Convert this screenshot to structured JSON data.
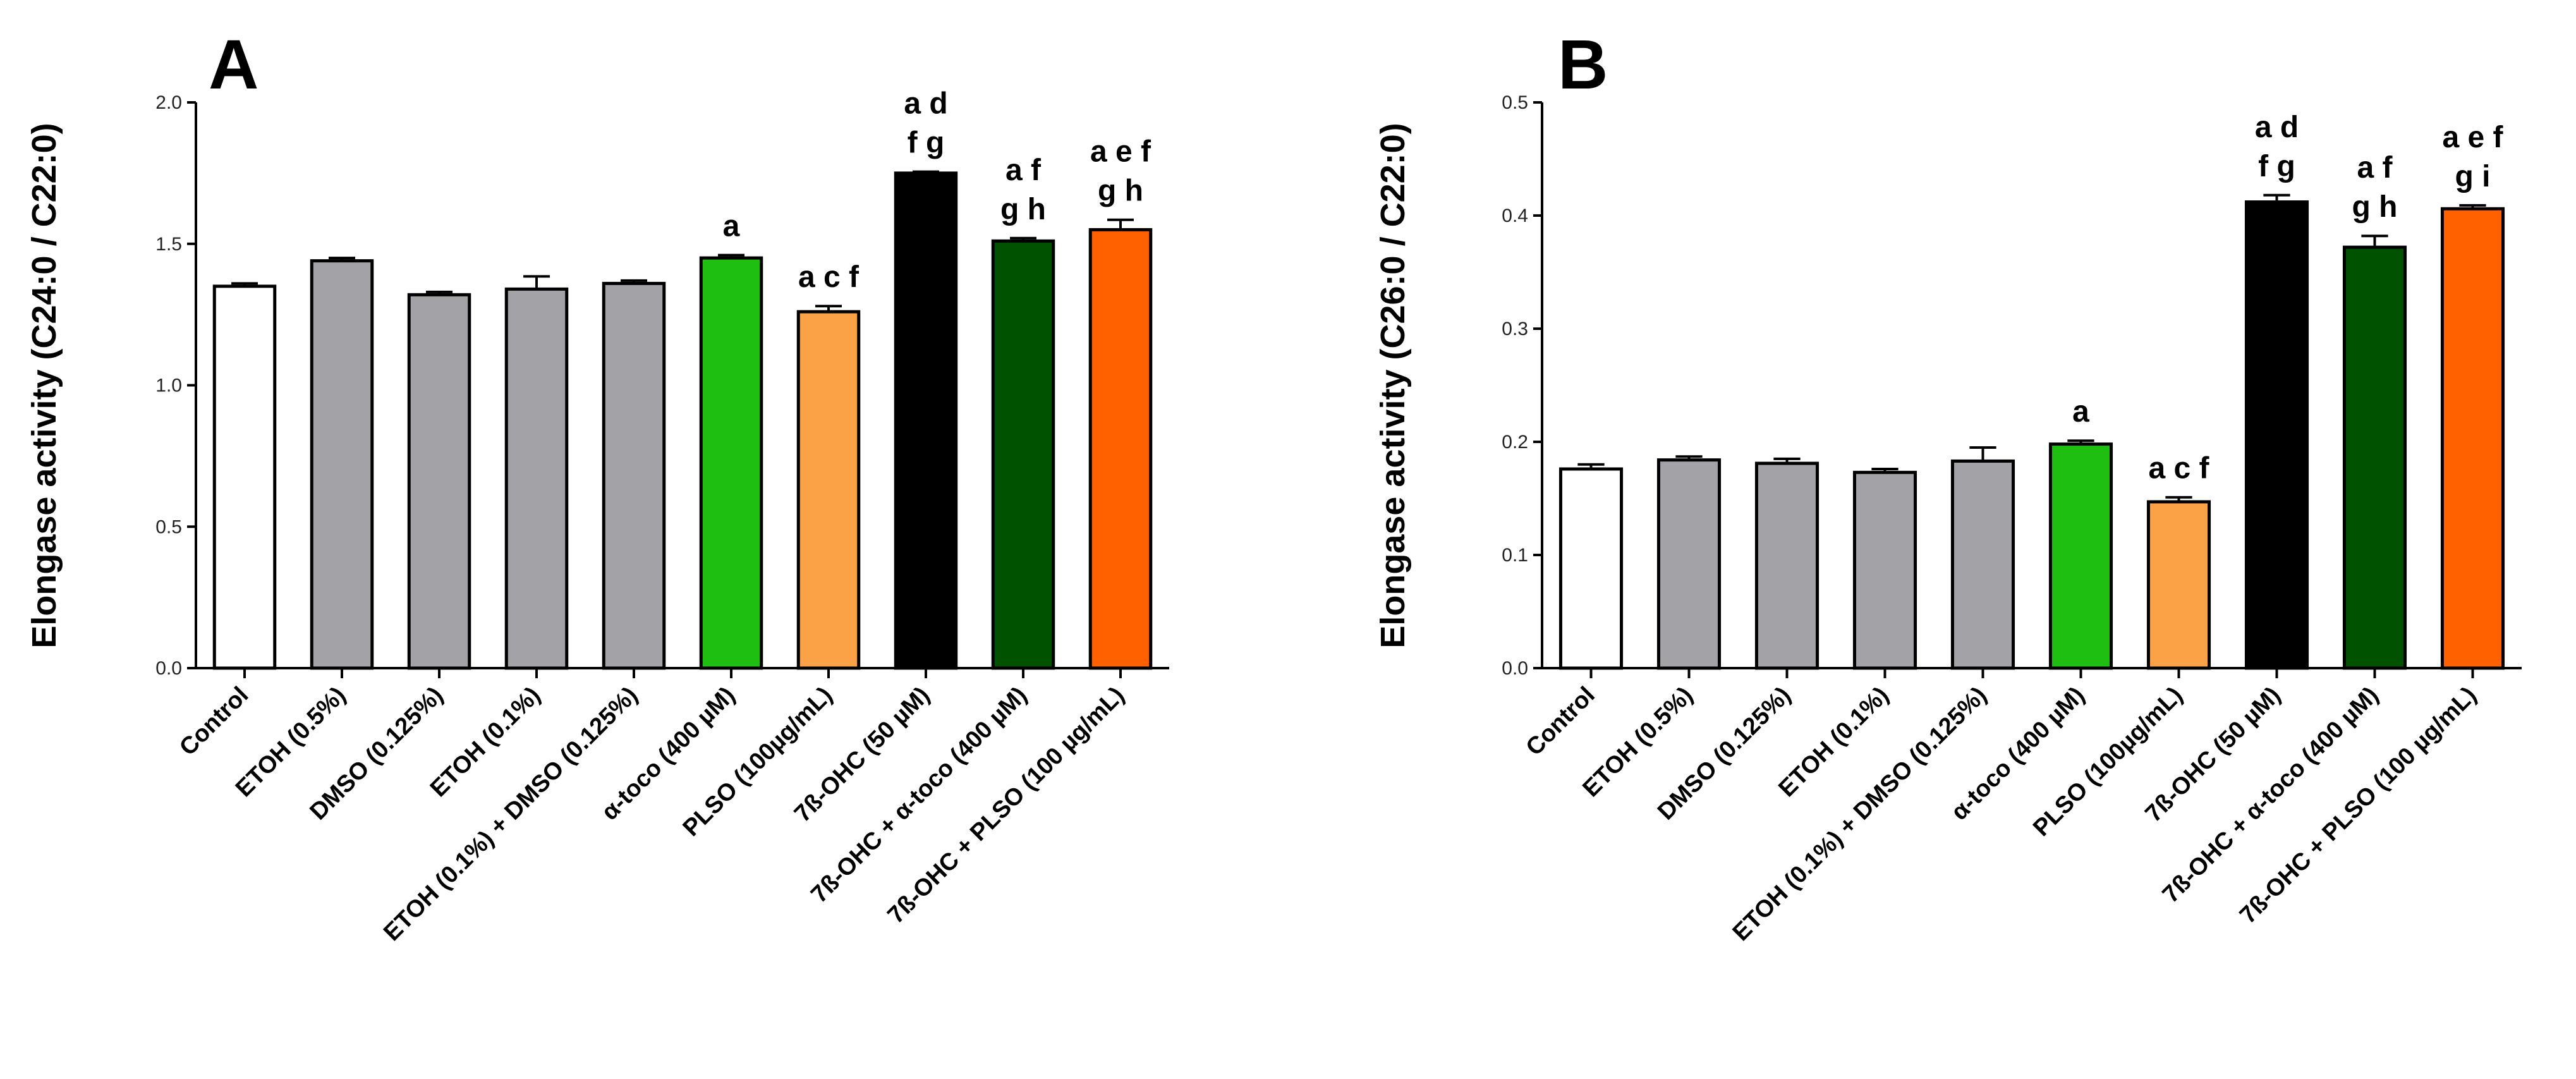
{
  "colors": {
    "Control": "#ffffff",
    "ETOH (0.5%)": "#a3a3a7",
    "DMSO (0.125%)": "#a3a3a7",
    "ETOH (0.1%)": "#a3a3a7",
    "ETOH (0.1%) + DMSO (0.125%)": "#a3a3a7",
    "α-toco (400 µM)": "#1fbf11",
    "PLSO (100µg/mL)": "#fba146",
    "7ß-OHC (50 µM)": "#000000",
    "7ß-OHC + α-toco (400 µM)": "#005200",
    "7ß-OHC + PLSO (100 µg/mL)": "#ff6000"
  },
  "chart_data": [
    {
      "type": "bar",
      "panel": "A",
      "ylabel": "Elongase activity (C24:0 / C22:0)",
      "ylim": [
        0,
        2.0
      ],
      "yticks": [
        "0.0",
        "0.5",
        "1.0",
        "1.5",
        "2.0"
      ],
      "categories": [
        "Control",
        "ETOH (0.5%)",
        "DMSO (0.125%)",
        "ETOH (0.1%)",
        "ETOH (0.1%) + DMSO (0.125%)",
        "α-toco (400 µM)",
        "PLSO (100µg/mL)",
        "7ß-OHC (50 µM)",
        "7ß-OHC + α-toco (400 µM)",
        "7ß-OHC + PLSO (100 µg/mL)"
      ],
      "values": [
        1.35,
        1.44,
        1.32,
        1.34,
        1.36,
        1.45,
        1.26,
        1.75,
        1.51,
        1.55
      ],
      "errors": [
        0.01,
        0.01,
        0.01,
        0.045,
        0.01,
        0.01,
        0.02,
        0.005,
        0.01,
        0.035
      ],
      "annotations": [
        [],
        [],
        [],
        [],
        [],
        [
          "a"
        ],
        [
          "a c f"
        ],
        [
          "a d",
          "f g"
        ],
        [
          "a f",
          "g h"
        ],
        [
          "a e f",
          "g h"
        ]
      ]
    },
    {
      "type": "bar",
      "panel": "B",
      "ylabel": "Elongase activity (C26:0 / C22:0)",
      "ylim": [
        0,
        0.5
      ],
      "yticks": [
        "0.0",
        "0.1",
        "0.2",
        "0.3",
        "0.4",
        "0.5"
      ],
      "categories": [
        "Control",
        "ETOH (0.5%)",
        "DMSO (0.125%)",
        "ETOH (0.1%)",
        "ETOH (0.1%) + DMSO (0.125%)",
        "α-toco (400 µM)",
        "PLSO (100µg/mL)",
        "7ß-OHC (50 µM)",
        "7ß-OHC + α-toco (400 µM)",
        "7ß-OHC + PLSO (100 µg/mL)"
      ],
      "values": [
        0.176,
        0.184,
        0.181,
        0.173,
        0.183,
        0.198,
        0.147,
        0.412,
        0.372,
        0.406
      ],
      "errors": [
        0.004,
        0.003,
        0.004,
        0.003,
        0.012,
        0.003,
        0.004,
        0.006,
        0.01,
        0.003
      ],
      "annotations": [
        [],
        [],
        [],
        [],
        [],
        [
          "a"
        ],
        [
          "a c f"
        ],
        [
          "a d",
          "f g"
        ],
        [
          "a f",
          "g h"
        ],
        [
          "a e f",
          "g i"
        ]
      ]
    }
  ]
}
